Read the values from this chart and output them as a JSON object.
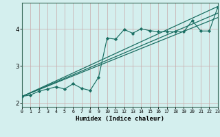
{
  "title": "",
  "xlabel": "Humidex (Indice chaleur)",
  "bg_color": "#d4efee",
  "grid_color_v": "#c8aaaa",
  "grid_color_h": "#c8aaaa",
  "line_color": "#1a6e62",
  "xlim": [
    0,
    23
  ],
  "ylim": [
    1.9,
    4.7
  ],
  "yticks": [
    2,
    3,
    4
  ],
  "xticks": [
    0,
    1,
    2,
    3,
    4,
    5,
    6,
    7,
    8,
    9,
    10,
    11,
    12,
    13,
    14,
    15,
    16,
    17,
    18,
    19,
    20,
    21,
    22,
    23
  ],
  "straight_lines": [
    {
      "x": [
        0,
        23
      ],
      "y": [
        2.18,
        4.6
      ]
    },
    {
      "x": [
        0,
        23
      ],
      "y": [
        2.18,
        4.42
      ]
    },
    {
      "x": [
        0,
        23
      ],
      "y": [
        2.18,
        4.3
      ]
    }
  ],
  "jagged_line": {
    "x": [
      0,
      1,
      2,
      3,
      4,
      5,
      6,
      7,
      8,
      9,
      10,
      11,
      12,
      13,
      14,
      15,
      16,
      17,
      18,
      19,
      20,
      21,
      22,
      23
    ],
    "y": [
      2.18,
      2.22,
      2.32,
      2.38,
      2.44,
      2.38,
      2.52,
      2.4,
      2.34,
      2.7,
      3.75,
      3.72,
      3.98,
      3.88,
      4.0,
      3.95,
      3.92,
      3.92,
      3.92,
      3.92,
      4.22,
      3.94,
      3.94,
      4.58
    ]
  }
}
